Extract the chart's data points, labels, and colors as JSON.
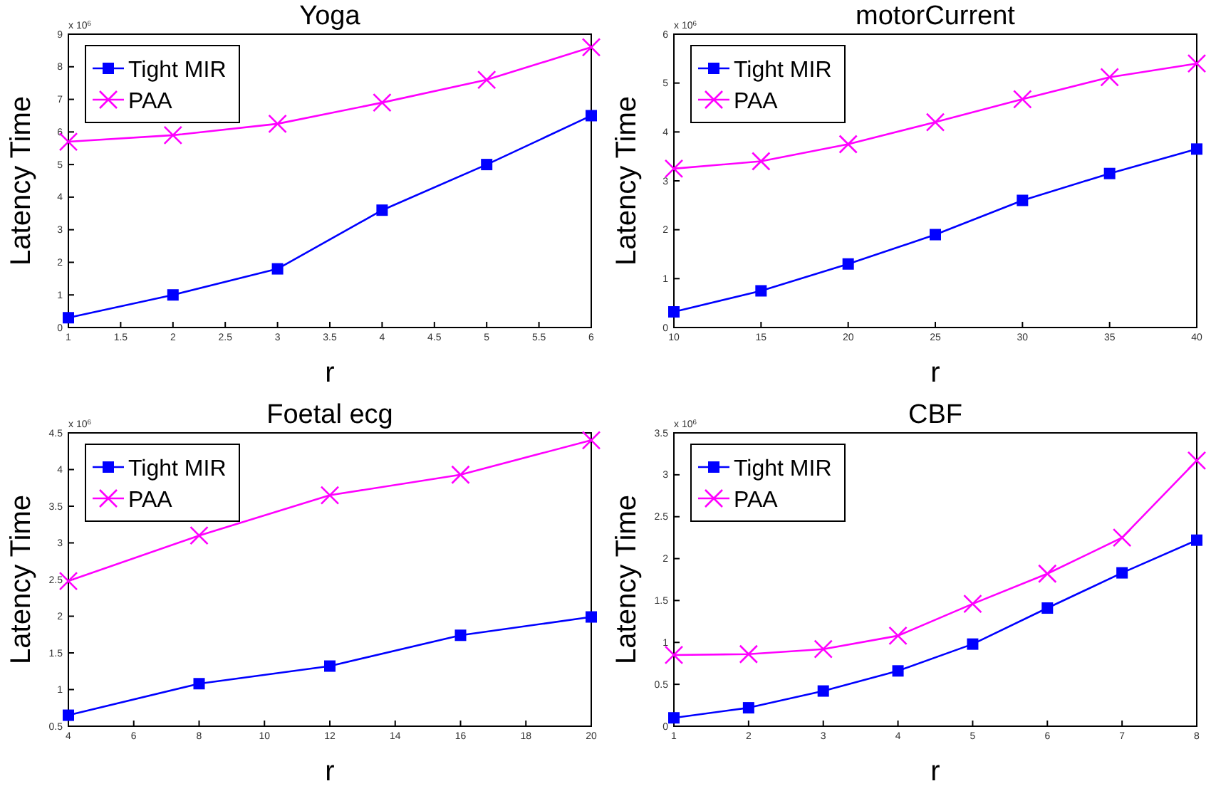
{
  "chart_data": [
    {
      "type": "line",
      "title": "Yoga",
      "xlabel": "r",
      "ylabel": "Latency Time",
      "annotations": [
        "x 10$^{6}$"
      ],
      "x": [
        1,
        2,
        3,
        4,
        5,
        6
      ],
      "xlim": [
        1,
        6
      ],
      "xticks": [
        1,
        1.5,
        2,
        2.5,
        3,
        3.5,
        4,
        4.5,
        5,
        5.5,
        6
      ],
      "ylim": [
        0,
        9
      ],
      "yticks": [
        0,
        1,
        2,
        3,
        4,
        5,
        6,
        7,
        8,
        9
      ],
      "legend": "top left",
      "series": [
        {
          "name": "Tight MIR",
          "color": "#0000ff",
          "marker": "square",
          "values": [
            0.3,
            1.0,
            1.8,
            3.6,
            5.0,
            6.5
          ]
        },
        {
          "name": "PAA",
          "color": "#ff00ff",
          "marker": "cross",
          "values": [
            5.7,
            5.9,
            6.25,
            6.9,
            7.6,
            8.6
          ]
        }
      ]
    },
    {
      "type": "line",
      "title": "motorCurrent",
      "xlabel": "r",
      "ylabel": "Latency Time",
      "annotations": [
        "x 10$^{6}$"
      ],
      "x": [
        10,
        15,
        20,
        25,
        30,
        35,
        40
      ],
      "xlim": [
        10,
        40
      ],
      "xticks": [
        10,
        15,
        20,
        25,
        30,
        35,
        40
      ],
      "ylim": [
        0,
        6
      ],
      "yticks": [
        0,
        1,
        2,
        3,
        4,
        5,
        6
      ],
      "legend": "top left",
      "series": [
        {
          "name": "Tight MIR",
          "color": "#0000ff",
          "marker": "square",
          "values": [
            0.32,
            0.75,
            1.3,
            1.9,
            2.6,
            3.15,
            3.65
          ]
        },
        {
          "name": "PAA",
          "color": "#ff00ff",
          "marker": "cross",
          "values": [
            3.25,
            3.4,
            3.75,
            4.2,
            4.67,
            5.12,
            5.4
          ]
        }
      ]
    },
    {
      "type": "line",
      "title": "Foetal ecg",
      "xlabel": "r",
      "ylabel": "Latency Time",
      "annotations": [
        "x 10$^{6}$"
      ],
      "x": [
        4,
        8,
        12,
        16,
        20
      ],
      "xlim": [
        4,
        20
      ],
      "xticks": [
        4,
        6,
        8,
        10,
        12,
        14,
        16,
        18,
        20
      ],
      "ylim": [
        0.5,
        4.5
      ],
      "yticks": [
        0.5,
        1,
        1.5,
        2,
        2.5,
        3,
        3.5,
        4,
        4.5
      ],
      "legend": "top left",
      "series": [
        {
          "name": "Tight MIR",
          "color": "#0000ff",
          "marker": "square",
          "values": [
            0.65,
            1.08,
            1.32,
            1.74,
            1.99
          ]
        },
        {
          "name": "PAA",
          "color": "#ff00ff",
          "marker": "cross",
          "values": [
            2.48,
            3.1,
            3.65,
            3.93,
            4.4
          ]
        }
      ]
    },
    {
      "type": "line",
      "title": "CBF",
      "xlabel": "r",
      "ylabel": "Latency Time",
      "annotations": [
        "x 10$^{6}$"
      ],
      "x": [
        1,
        2,
        3,
        4,
        5,
        6,
        7,
        8
      ],
      "xlim": [
        1,
        8
      ],
      "xticks": [
        1,
        2,
        3,
        4,
        5,
        6,
        7,
        8
      ],
      "ylim": [
        0,
        3.5
      ],
      "yticks": [
        0,
        0.5,
        1,
        1.5,
        2,
        2.5,
        3,
        3.5
      ],
      "legend": "top left",
      "series": [
        {
          "name": "Tight MIR",
          "color": "#0000ff",
          "marker": "square",
          "values": [
            0.1,
            0.22,
            0.42,
            0.66,
            0.98,
            1.41,
            1.83,
            2.22
          ]
        },
        {
          "name": "PAA",
          "color": "#ff00ff",
          "marker": "cross",
          "values": [
            0.85,
            0.86,
            0.92,
            1.08,
            1.46,
            1.82,
            2.25,
            3.17
          ]
        }
      ]
    }
  ]
}
